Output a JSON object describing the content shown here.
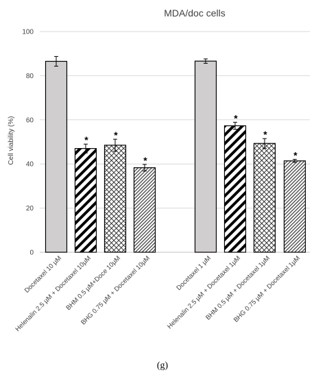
{
  "chart_data": {
    "type": "bar",
    "title": "MDA/doc cells",
    "ylabel": "Cell viability (%)",
    "xlabel": "",
    "ylim": [
      0,
      100
    ],
    "yticks": [
      0,
      20,
      40,
      60,
      80,
      100
    ],
    "grid": true,
    "panel_label": "(g)",
    "significance_marker": "*",
    "categories": [
      "Docetaxel 10 µM",
      "Helenalin 2.5 µM + Docetaxel 10µM",
      "BHM 0.5 µM+Doce 10µM",
      "BHG 0.75 µM + Docetaxel 10µM",
      "Docetaxel 1 µM",
      "Helenalin 2.5 µM + Docetaxel 1µM",
      "BHM 0.5 µM + Docetaxel 1µM",
      "BHG 0.75 µM + Docetaxel 1µM"
    ],
    "values": [
      86.5,
      47,
      48.5,
      38.3,
      86.6,
      57.3,
      49.3,
      41.4
    ],
    "errors": [
      2.2,
      2.0,
      2.7,
      1.5,
      1.0,
      1.6,
      2.2,
      0.7
    ],
    "significant": [
      false,
      true,
      true,
      true,
      false,
      true,
      true,
      true
    ],
    "patterns": [
      "solid",
      "wide-diagonal",
      "crosshatch",
      "fine-diagonal",
      "solid",
      "wide-diagonal",
      "crosshatch",
      "fine-diagonal"
    ],
    "colors": {
      "solid_fill": "#d0cece",
      "bar_edge": "#000000",
      "grid": "#d9d9d9",
      "axis_text": "#404040"
    }
  }
}
